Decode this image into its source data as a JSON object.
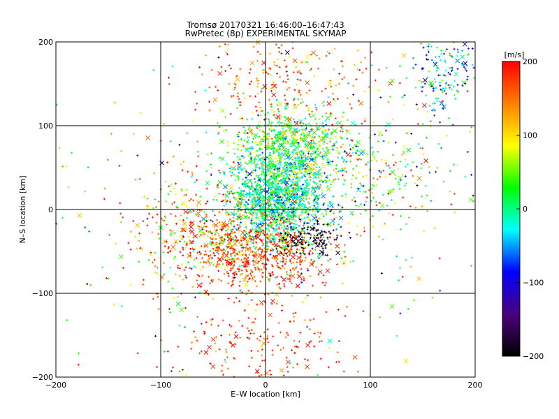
{
  "chart_data": {
    "type": "scatter",
    "title": "Tromsø 20170321 16:46:00–16:47:43",
    "subtitle": "RwPretec (8p) EXPERIMENTAL SKYMAP",
    "xlabel": "E–W location [km]",
    "ylabel": "N–S location [km]",
    "xlim": [
      -200,
      200
    ],
    "ylim": [
      -200,
      200
    ],
    "xticks": [
      -200,
      -100,
      0,
      100,
      200
    ],
    "yticks": [
      -200,
      -100,
      0,
      100,
      200
    ],
    "grid": true,
    "marker_types": [
      "plus",
      "cross"
    ],
    "colorbar": {
      "label": "[m/s]",
      "range": [
        -200,
        200
      ],
      "ticks": [
        -200,
        -100,
        0,
        100,
        200
      ],
      "colors": [
        "#000000",
        "#4b007f",
        "#0000ff",
        "#00ffff",
        "#00ff00",
        "#ffff00",
        "#ff8000",
        "#ff0000"
      ]
    },
    "clusters": [
      {
        "name": "central",
        "x": 10,
        "y": 10,
        "sx": 22,
        "sy": 28,
        "v": -5,
        "sv": 45
      },
      {
        "name": "upper-green",
        "x": 25,
        "y": 75,
        "sx": 28,
        "sy": 22,
        "v": 30,
        "sv": 50
      },
      {
        "name": "southern-red",
        "x": -5,
        "y": -55,
        "sx": 28,
        "sy": 22,
        "v": 170,
        "sv": 30
      },
      {
        "name": "southeast-black",
        "x": 45,
        "y": -35,
        "sx": 14,
        "sy": 10,
        "v": -185,
        "sv": 20
      },
      {
        "name": "west-mixed",
        "x": -55,
        "y": -30,
        "sx": 35,
        "sy": 35,
        "v": 140,
        "sv": 70
      },
      {
        "name": "northeast-cyan",
        "x": 170,
        "y": 160,
        "sx": 18,
        "sy": 25,
        "v": -40,
        "sv": 55
      },
      {
        "name": "north-red",
        "x": 20,
        "y": 150,
        "sx": 40,
        "sy": 30,
        "v": 160,
        "sv": 35
      },
      {
        "name": "south-red",
        "x": -10,
        "y": -160,
        "sx": 45,
        "sy": 25,
        "v": 175,
        "sv": 25
      },
      {
        "name": "east-mixed",
        "x": 100,
        "y": 50,
        "sx": 45,
        "sy": 40,
        "v": 20,
        "sv": 90
      },
      {
        "name": "far-scatter",
        "x": 0,
        "y": 0,
        "sx": 100,
        "sy": 100,
        "v": 80,
        "sv": 120
      }
    ]
  }
}
